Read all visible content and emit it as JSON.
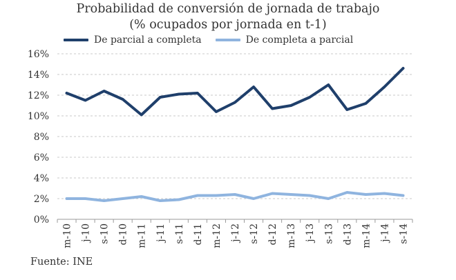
{
  "chart_data": {
    "type": "line",
    "title": "Probabilidad de conversión de jornada de trabajo",
    "subtitle": "(% ocupados por jornada en t-1)",
    "categories": [
      "m-10",
      "j-10",
      "s-10",
      "d-10",
      "m-11",
      "j-11",
      "s-11",
      "d-11",
      "m-12",
      "j-12",
      "s-12",
      "d-12",
      "m-13",
      "j-13",
      "s-13",
      "d-13",
      "m-14",
      "j-14",
      "s-14"
    ],
    "series": [
      {
        "name": "De parcial a completa",
        "color": "#1f3f6b",
        "values": [
          12.2,
          11.5,
          12.4,
          11.6,
          10.1,
          11.8,
          12.1,
          12.2,
          10.4,
          11.3,
          12.8,
          10.7,
          11.0,
          11.8,
          13.0,
          10.6,
          11.2,
          12.8,
          14.6
        ]
      },
      {
        "name": "De completa a parcial",
        "color": "#8fb4df",
        "values": [
          2.0,
          2.0,
          1.8,
          2.0,
          2.2,
          1.8,
          1.9,
          2.3,
          2.3,
          2.4,
          2.0,
          2.5,
          2.4,
          2.3,
          2.0,
          2.6,
          2.4,
          2.5,
          2.3
        ]
      }
    ],
    "ylim": [
      0,
      16
    ],
    "yticks": [
      0,
      2,
      4,
      6,
      8,
      10,
      12,
      14,
      16
    ],
    "ytick_suffix": "%",
    "grid": "horizontal dashed",
    "legend": "top"
  },
  "source": "Fuente: INE"
}
